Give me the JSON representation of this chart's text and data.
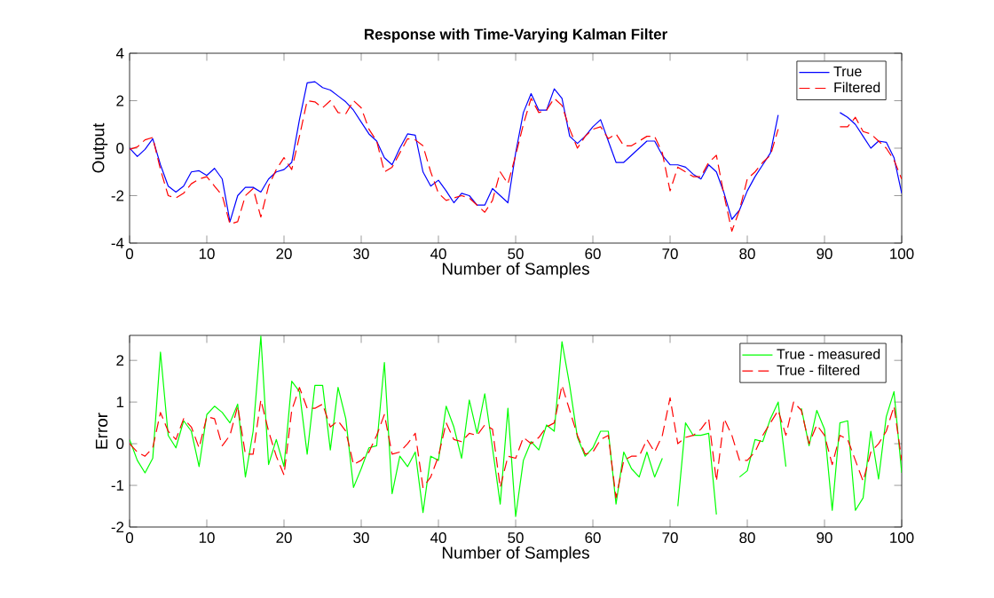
{
  "chart_data": [
    {
      "type": "line",
      "title": "Response with Time-Varying Kalman Filter",
      "xlabel": "Number of Samples",
      "ylabel": "Output",
      "x": [
        0,
        1,
        2,
        3,
        4,
        5,
        6,
        7,
        8,
        9,
        10,
        11,
        12,
        13,
        14,
        15,
        16,
        17,
        18,
        19,
        20,
        21,
        22,
        23,
        24,
        25,
        26,
        27,
        28,
        29,
        30,
        31,
        32,
        33,
        34,
        35,
        36,
        37,
        38,
        39,
        40,
        41,
        42,
        43,
        44,
        45,
        46,
        47,
        48,
        49,
        50,
        51,
        52,
        53,
        54,
        55,
        56,
        57,
        58,
        59,
        60,
        61,
        62,
        63,
        64,
        65,
        66,
        67,
        68,
        69,
        70,
        71,
        72,
        73,
        74,
        75,
        76,
        77,
        78,
        79,
        80,
        81,
        82,
        83,
        84,
        85,
        86,
        87,
        88,
        89,
        90,
        91,
        92,
        93,
        94,
        95,
        96,
        97,
        98,
        99,
        100
      ],
      "series": [
        {
          "name": "True",
          "color": "#0000ff",
          "line_style": "solid",
          "values": [
            0,
            -0.35,
            -0.05,
            0.4,
            -0.7,
            -1.6,
            -1.85,
            -1.6,
            -1.0,
            -0.95,
            -1.15,
            -0.85,
            -1.3,
            -3.1,
            -2.0,
            -1.65,
            -1.65,
            -1.85,
            -1.3,
            -1.0,
            -0.9,
            -0.6,
            1.2,
            2.75,
            2.8,
            2.55,
            2.45,
            2.2,
            1.95,
            1.6,
            1.1,
            0.6,
            0.3,
            -0.4,
            -0.7,
            0,
            0.6,
            0.55,
            -1.0,
            -1.6,
            -1.35,
            -1.8,
            -2.3,
            -1.9,
            -2.0,
            -2.4,
            -2.4,
            -1.7,
            -2.0,
            -2.3,
            -0.2,
            1.5,
            2.3,
            1.6,
            1.6,
            2.5,
            2.1,
            0.5,
            0.2,
            0.5,
            0.9,
            1.2,
            0.3,
            -0.6,
            -0.6,
            -0.3,
            0,
            0.3,
            0.3,
            -0.3,
            -0.7,
            -0.7,
            -0.8,
            -1.1,
            -1.3,
            -0.7,
            -1.0,
            -1.9,
            -3.0,
            -2.6,
            -1.8,
            -1.2,
            -0.7,
            -0.2,
            1.4,
            null,
            null,
            null,
            null,
            null,
            null,
            null,
            1.5,
            1.3,
            1.0,
            0.5,
            0,
            0.3,
            0.25,
            -0.4,
            -1.9
          ]
        },
        {
          "name": "Filtered",
          "color": "#ff0000",
          "line_style": "dashed",
          "values": [
            -0.05,
            0.05,
            0.35,
            0.45,
            -0.9,
            -2.0,
            -2.1,
            -1.9,
            -1.5,
            -1.3,
            -1.2,
            -1.6,
            -2.0,
            -3.2,
            -3.1,
            -2.0,
            -1.7,
            -2.9,
            -1.6,
            -0.9,
            -0.4,
            -0.9,
            0.5,
            2.0,
            1.95,
            1.7,
            2.0,
            1.5,
            1.45,
            2.0,
            1.7,
            0.8,
            0.3,
            -1.0,
            -0.8,
            -0.2,
            0.4,
            0.35,
            0.1,
            -1.0,
            -1.9,
            -2.2,
            -2.1,
            -2.0,
            -2.1,
            -2.4,
            -2.7,
            -2.2,
            -1.0,
            -1.5,
            -0.3,
            1.0,
            2.1,
            1.5,
            1.6,
            2.1,
            1.8,
            0.8,
            0.0,
            0.5,
            0.8,
            0.9,
            0.4,
            0.6,
            0.1,
            0.1,
            0.3,
            0.5,
            0.5,
            -0.2,
            -1.8,
            -0.8,
            -1.0,
            -1.2,
            -1.2,
            -0.6,
            -0.3,
            -2.0,
            -3.5,
            -2.6,
            -1.3,
            -1.0,
            -0.6,
            -0.3,
            0.8,
            null,
            null,
            null,
            null,
            null,
            null,
            null,
            0.9,
            0.9,
            1.3,
            0.7,
            0.6,
            0.3,
            0.0,
            -0.5,
            -1.3
          ]
        }
      ],
      "xlim": [
        0,
        100
      ],
      "ylim": [
        -4,
        4
      ],
      "xticks": [
        0,
        10,
        20,
        30,
        40,
        50,
        60,
        70,
        80,
        90,
        100
      ],
      "yticks": [
        -4,
        -2,
        0,
        2,
        4
      ],
      "grid": false,
      "legend": "top right"
    },
    {
      "type": "line",
      "xlabel": "Number of Samples",
      "ylabel": "Error",
      "x": [
        0,
        1,
        2,
        3,
        4,
        5,
        6,
        7,
        8,
        9,
        10,
        11,
        12,
        13,
        14,
        15,
        16,
        17,
        18,
        19,
        20,
        21,
        22,
        23,
        24,
        25,
        26,
        27,
        28,
        29,
        30,
        31,
        32,
        33,
        34,
        35,
        36,
        37,
        38,
        39,
        40,
        41,
        42,
        43,
        44,
        45,
        46,
        47,
        48,
        49,
        50,
        51,
        52,
        53,
        54,
        55,
        56,
        57,
        58,
        59,
        60,
        61,
        62,
        63,
        64,
        65,
        66,
        67,
        68,
        69,
        70,
        71,
        72,
        73,
        74,
        75,
        76,
        77,
        78,
        79,
        80,
        81,
        82,
        83,
        84,
        85,
        86,
        87,
        88,
        89,
        90,
        91,
        92,
        93,
        94,
        95,
        96,
        97,
        98,
        99,
        100
      ],
      "series": [
        {
          "name": "True - measured",
          "color": "#00ff00",
          "line_style": "solid",
          "values": [
            0.1,
            -0.4,
            -0.7,
            -0.35,
            2.2,
            0.2,
            -0.1,
            0.55,
            0.3,
            -0.55,
            0.7,
            0.9,
            0.75,
            0.5,
            0.95,
            -0.8,
            0.3,
            2.58,
            -0.5,
            0.1,
            -0.55,
            1.5,
            1.25,
            -0.25,
            1.4,
            1.4,
            -0.15,
            1.35,
            0.6,
            -1.05,
            -0.6,
            -0.1,
            -0.05,
            1.95,
            -1.2,
            -0.3,
            -0.55,
            -0.2,
            -1.65,
            -0.3,
            -0.4,
            0.9,
            0.4,
            -0.35,
            1.05,
            0.25,
            1.2,
            -0.1,
            -1.45,
            0.85,
            -1.75,
            -0.4,
            0.05,
            -0.15,
            0.45,
            0.3,
            2.45,
            1.4,
            0.15,
            -0.3,
            -0.1,
            0.3,
            0.3,
            -1.45,
            -0.2,
            -0.6,
            -0.8,
            -0.2,
            -0.8,
            -0.35,
            null,
            -1.5,
            0.5,
            0.2,
            0.2,
            0.25,
            -1.7,
            null,
            null,
            -0.8,
            -0.65,
            0.1,
            0.05,
            0.6,
            1.0,
            -0.55,
            null,
            0.85,
            -0.05,
            0.8,
            0.35,
            -1.6,
            0.5,
            0.55,
            -1.6,
            -1.3,
            0.3,
            -0.85,
            0.65,
            1.25,
            -0.7
          ]
        },
        {
          "name": "True - filtered",
          "color": "#ff0000",
          "line_style": "dashed",
          "values": [
            0,
            -0.2,
            -0.3,
            -0.1,
            0.75,
            0.3,
            0.1,
            0.6,
            0.4,
            -0.1,
            0.65,
            0.6,
            -0.05,
            0.2,
            0.9,
            -0.25,
            -0.25,
            1.05,
            0.3,
            -0.3,
            -0.75,
            0.8,
            1.35,
            0.85,
            0.85,
            0.95,
            0.4,
            0.55,
            0.3,
            -0.5,
            -0.4,
            -0.2,
            0.2,
            0.7,
            -0.25,
            -0.2,
            0.0,
            0.25,
            -1.05,
            -0.8,
            -0.3,
            0.5,
            0.1,
            0.05,
            0.25,
            0.2,
            0.45,
            0.35,
            -1.05,
            -0.3,
            -0.35,
            0.15,
            0.0,
            0.15,
            0.4,
            0.5,
            1.4,
            0.8,
            0.2,
            -0.25,
            -0.2,
            0.1,
            0.2,
            -1.3,
            -0.4,
            -0.3,
            -0.3,
            0.1,
            -0.2,
            0.2,
            1.1,
            0.0,
            0.15,
            0.2,
            0.35,
            0.6,
            -0.9,
            0.6,
            0.2,
            -0.4,
            -0.4,
            -0.2,
            0.2,
            0.5,
            0.8,
            0.2,
            1.0,
            0.8,
            0.0,
            0.45,
            0.2,
            -0.5,
            0.2,
            0.1,
            -0.4,
            -0.9,
            -0.2,
            0.0,
            0.3,
            0.9,
            -0.4
          ]
        }
      ],
      "xlim": [
        0,
        100
      ],
      "ylim": [
        -2,
        2.6
      ],
      "xticks": [
        0,
        10,
        20,
        30,
        40,
        50,
        60,
        70,
        80,
        90,
        100
      ],
      "yticks": [
        -2,
        -1,
        0,
        1,
        2
      ],
      "grid": false,
      "legend": "top right"
    }
  ]
}
